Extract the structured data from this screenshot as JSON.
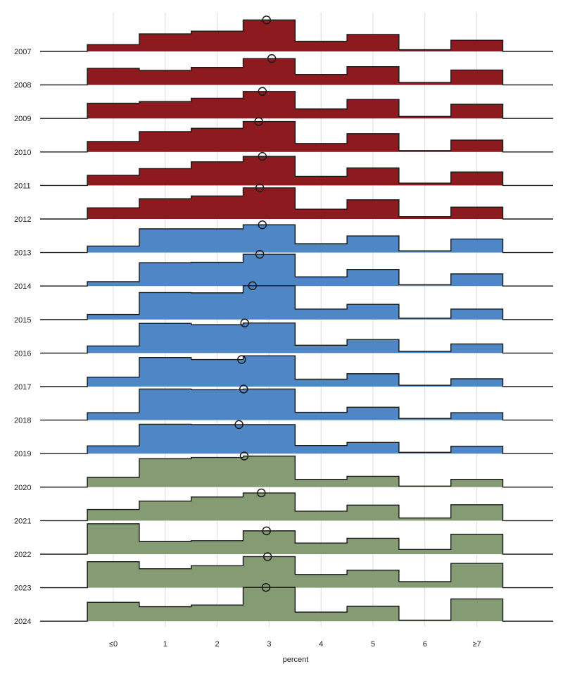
{
  "chart_data": {
    "type": "ridgeline-step-histogram",
    "xlabel": "percent",
    "categories": [
      "≤0",
      "1",
      "2",
      "3",
      "4",
      "5",
      "6",
      "≥7"
    ],
    "colors": {
      "dark_red": "#8c1a1e",
      "blue": "#4e86c6",
      "green": "#849b74"
    },
    "grid": true,
    "series": [
      {
        "name": "2007",
        "color": "dark_red",
        "values": [
          0.2,
          0.52,
          0.6,
          0.93,
          0.3,
          0.5,
          0.05,
          0.33
        ],
        "mean": 2.95
      },
      {
        "name": "2008",
        "color": "dark_red",
        "values": [
          0.49,
          0.43,
          0.52,
          0.78,
          0.31,
          0.54,
          0.07,
          0.44
        ],
        "mean": 3.05
      },
      {
        "name": "2009",
        "color": "dark_red",
        "values": [
          0.45,
          0.5,
          0.6,
          0.8,
          0.28,
          0.56,
          0.06,
          0.42
        ],
        "mean": 2.87
      },
      {
        "name": "2010",
        "color": "dark_red",
        "values": [
          0.31,
          0.6,
          0.7,
          0.9,
          0.25,
          0.54,
          0.04,
          0.35
        ],
        "mean": 2.8
      },
      {
        "name": "2011",
        "color": "dark_red",
        "values": [
          0.3,
          0.5,
          0.7,
          0.86,
          0.27,
          0.52,
          0.07,
          0.4
        ],
        "mean": 2.87
      },
      {
        "name": "2012",
        "color": "dark_red",
        "values": [
          0.33,
          0.6,
          0.68,
          0.92,
          0.29,
          0.57,
          0.07,
          0.35
        ],
        "mean": 2.82
      },
      {
        "name": "2013",
        "color": "blue",
        "values": [
          0.19,
          0.7,
          0.7,
          0.82,
          0.26,
          0.49,
          0.05,
          0.4
        ],
        "mean": 2.87
      },
      {
        "name": "2014",
        "color": "blue",
        "values": [
          0.13,
          0.69,
          0.7,
          0.94,
          0.27,
          0.49,
          0.04,
          0.36
        ],
        "mean": 2.82
      },
      {
        "name": "2015",
        "color": "blue",
        "values": [
          0.15,
          0.8,
          0.79,
          1.0,
          0.31,
          0.45,
          0.04,
          0.31
        ],
        "mean": 2.68
      },
      {
        "name": "2016",
        "color": "blue",
        "values": [
          0.21,
          0.88,
          0.84,
          0.89,
          0.23,
          0.4,
          0.05,
          0.27
        ],
        "mean": 2.53
      },
      {
        "name": "2017",
        "color": "blue",
        "values": [
          0.28,
          0.86,
          0.8,
          0.91,
          0.22,
          0.38,
          0.04,
          0.23
        ],
        "mean": 2.47
      },
      {
        "name": "2018",
        "color": "blue",
        "values": [
          0.22,
          0.92,
          0.9,
          0.92,
          0.23,
          0.38,
          0.05,
          0.22
        ],
        "mean": 2.51
      },
      {
        "name": "2019",
        "color": "blue",
        "values": [
          0.23,
          0.87,
          0.86,
          0.86,
          0.24,
          0.33,
          0.04,
          0.22
        ],
        "mean": 2.42
      },
      {
        "name": "2020",
        "color": "green",
        "values": [
          0.29,
          0.84,
          0.88,
          0.92,
          0.23,
          0.32,
          0.03,
          0.23
        ],
        "mean": 2.52
      },
      {
        "name": "2021",
        "color": "green",
        "values": [
          0.33,
          0.58,
          0.7,
          0.82,
          0.28,
          0.46,
          0.08,
          0.47
        ],
        "mean": 2.85
      },
      {
        "name": "2022",
        "color": "green",
        "values": [
          0.9,
          0.38,
          0.4,
          0.69,
          0.33,
          0.47,
          0.14,
          0.59
        ],
        "mean": 2.95
      },
      {
        "name": "2023",
        "color": "green",
        "values": [
          0.77,
          0.56,
          0.65,
          0.92,
          0.39,
          0.52,
          0.18,
          0.72
        ],
        "mean": 2.97
      },
      {
        "name": "2024",
        "color": "green",
        "values": [
          0.56,
          0.43,
          0.48,
          1.0,
          0.27,
          0.44,
          0.03,
          0.66
        ],
        "mean": 2.94
      }
    ]
  }
}
